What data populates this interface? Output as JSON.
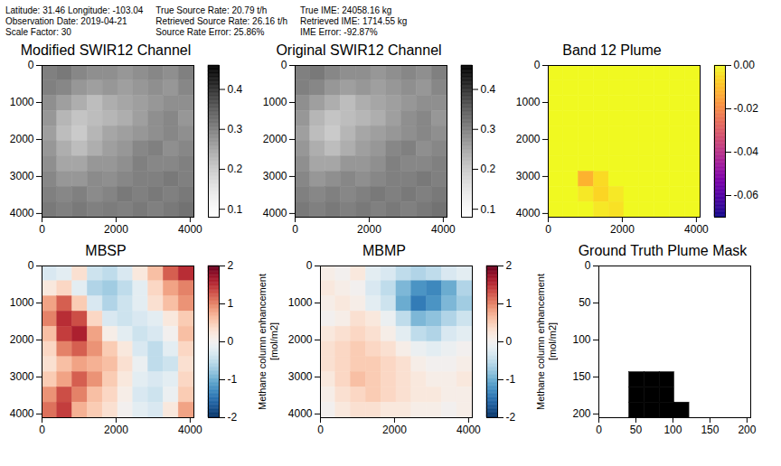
{
  "header": [
    [
      "Latitude: 31.46 Longitude: -103.04",
      "Observation Date: 2019-04-21",
      "Scale Factor: 30"
    ],
    [
      "True Source Rate: 20.79 t/h",
      "Retrieved Source Rate: 26.16 t/h",
      "Source Rate Error: 25.86%"
    ],
    [
      "True IME: 24058.16 kg",
      "Retrieved IME: 1714.55 kg",
      "IME Error: -92.87%"
    ]
  ],
  "chart_data": [
    {
      "type": "heatmap",
      "title": "Modified SWIR12 Channel",
      "xlim": [
        0,
        4100
      ],
      "ylim": [
        4100,
        0
      ],
      "xticks": [
        0,
        2000,
        4000
      ],
      "yticks": [
        0,
        1000,
        2000,
        3000,
        4000
      ],
      "color": "Greys",
      "color_range": [
        0.08,
        0.46
      ],
      "colorbar_ticks": [
        0.1,
        0.2,
        0.3,
        0.4
      ],
      "cells": [
        [
          0.3,
          0.31,
          0.29,
          0.28,
          0.28,
          0.27,
          0.28,
          0.29,
          0.28,
          0.3
        ],
        [
          0.3,
          0.29,
          0.27,
          0.26,
          0.27,
          0.26,
          0.27,
          0.28,
          0.27,
          0.29
        ],
        [
          0.28,
          0.26,
          0.24,
          0.22,
          0.24,
          0.25,
          0.26,
          0.27,
          0.28,
          0.28
        ],
        [
          0.27,
          0.23,
          0.21,
          0.22,
          0.23,
          0.24,
          0.26,
          0.28,
          0.29,
          0.27
        ],
        [
          0.26,
          0.22,
          0.2,
          0.23,
          0.25,
          0.26,
          0.27,
          0.28,
          0.29,
          0.28
        ],
        [
          0.27,
          0.24,
          0.22,
          0.24,
          0.26,
          0.27,
          0.29,
          0.3,
          0.28,
          0.29
        ],
        [
          0.28,
          0.25,
          0.25,
          0.27,
          0.27,
          0.28,
          0.3,
          0.29,
          0.29,
          0.3
        ],
        [
          0.29,
          0.27,
          0.27,
          0.285,
          0.28,
          0.29,
          0.3,
          0.3,
          0.31,
          0.3
        ],
        [
          0.3,
          0.29,
          0.3,
          0.285,
          0.295,
          0.31,
          0.3,
          0.31,
          0.3,
          0.31
        ],
        [
          0.31,
          0.3,
          0.31,
          0.3,
          0.305,
          0.3,
          0.31,
          0.3,
          0.31,
          0.32
        ]
      ]
    },
    {
      "type": "heatmap",
      "title": "Original SWIR12 Channel",
      "xlim": [
        0,
        4100
      ],
      "ylim": [
        4100,
        0
      ],
      "xticks": [
        0,
        2000,
        4000
      ],
      "yticks": [
        0,
        1000,
        2000,
        3000,
        4000
      ],
      "color": "Greys",
      "color_range": [
        0.08,
        0.46
      ],
      "colorbar_ticks": [
        0.1,
        0.2,
        0.3,
        0.4
      ],
      "cells": [
        [
          0.3,
          0.31,
          0.29,
          0.28,
          0.28,
          0.27,
          0.28,
          0.29,
          0.28,
          0.3
        ],
        [
          0.3,
          0.29,
          0.27,
          0.26,
          0.27,
          0.26,
          0.27,
          0.28,
          0.27,
          0.29
        ],
        [
          0.28,
          0.26,
          0.24,
          0.22,
          0.24,
          0.25,
          0.26,
          0.27,
          0.28,
          0.28
        ],
        [
          0.27,
          0.23,
          0.21,
          0.22,
          0.23,
          0.24,
          0.26,
          0.28,
          0.29,
          0.27
        ],
        [
          0.26,
          0.22,
          0.2,
          0.23,
          0.25,
          0.26,
          0.27,
          0.28,
          0.29,
          0.28
        ],
        [
          0.27,
          0.24,
          0.22,
          0.24,
          0.26,
          0.27,
          0.29,
          0.3,
          0.28,
          0.29
        ],
        [
          0.28,
          0.25,
          0.25,
          0.27,
          0.27,
          0.28,
          0.3,
          0.29,
          0.29,
          0.3
        ],
        [
          0.29,
          0.27,
          0.28,
          0.29,
          0.28,
          0.29,
          0.3,
          0.3,
          0.31,
          0.3
        ],
        [
          0.3,
          0.29,
          0.3,
          0.29,
          0.3,
          0.31,
          0.3,
          0.31,
          0.3,
          0.31
        ],
        [
          0.31,
          0.3,
          0.31,
          0.3,
          0.31,
          0.3,
          0.31,
          0.3,
          0.31,
          0.32
        ]
      ]
    },
    {
      "type": "heatmap",
      "title": "Band 12 Plume",
      "xlim": [
        0,
        4100
      ],
      "ylim": [
        4100,
        0
      ],
      "xticks": [
        0,
        2000,
        4000
      ],
      "yticks": [
        0,
        1000,
        2000,
        3000,
        4000
      ],
      "color": "plasma",
      "color_range": [
        -0.07,
        0
      ],
      "colorbar_ticks": [
        -0.06,
        -0.04,
        -0.02,
        {
          "value": 0,
          "label": "0.00"
        }
      ],
      "cells": [
        [
          0,
          0,
          0,
          0,
          0,
          0,
          0,
          0,
          0,
          0
        ],
        [
          0,
          0,
          0,
          0,
          0,
          0,
          0,
          0,
          0,
          0
        ],
        [
          0,
          0,
          0,
          0,
          0,
          0,
          0,
          0,
          0,
          0
        ],
        [
          0,
          0,
          0,
          0,
          0,
          0,
          0,
          0,
          0,
          0
        ],
        [
          0,
          0,
          0,
          0,
          0,
          0,
          0,
          0,
          0,
          0
        ],
        [
          0,
          0,
          0,
          0,
          0,
          0,
          0,
          0,
          0,
          0
        ],
        [
          0,
          0,
          0,
          0,
          0,
          0,
          0,
          0,
          0,
          0
        ],
        [
          0,
          0,
          -0.012,
          -0.005,
          0,
          0,
          0,
          0,
          0,
          0
        ],
        [
          0,
          0,
          -0.003,
          -0.006,
          -0.003,
          0,
          0,
          0,
          0,
          0
        ],
        [
          0,
          0,
          0,
          -0.003,
          -0.004,
          0,
          0,
          0,
          0,
          0
        ]
      ]
    },
    {
      "type": "heatmap",
      "title": "MBSP",
      "xlim": [
        0,
        4100
      ],
      "ylim": [
        4100,
        0
      ],
      "xticks": [
        0,
        2000,
        4000
      ],
      "yticks": [
        0,
        1000,
        2000,
        3000,
        4000
      ],
      "color": "RdBu_r",
      "color_range": [
        -2,
        2
      ],
      "colorbar_ticks": [
        -2,
        -1,
        0,
        1,
        2
      ],
      "colorbar_label": "Methane column enhancement [mol/m2]",
      "cells": [
        [
          -0.3,
          -0.2,
          0.3,
          -0.4,
          -0.5,
          -0.3,
          0.2,
          0.6,
          1.2,
          1.5
        ],
        [
          0.2,
          0.4,
          -0.2,
          -0.6,
          -0.7,
          -0.5,
          -0.2,
          0.4,
          0.8,
          1.0
        ],
        [
          0.8,
          1.2,
          0.5,
          -0.3,
          -0.6,
          -0.4,
          -0.2,
          0.3,
          0.6,
          0.9
        ],
        [
          1.0,
          1.5,
          1.3,
          0.4,
          -0.3,
          -0.4,
          -0.3,
          -0.2,
          0.2,
          0.5
        ],
        [
          0.6,
          1.4,
          1.6,
          0.8,
          0.1,
          -0.2,
          -0.4,
          -0.3,
          0.0,
          0.6
        ],
        [
          0.4,
          1.0,
          1.2,
          0.9,
          0.5,
          0.2,
          -0.3,
          -0.5,
          -0.2,
          0.4
        ],
        [
          0.3,
          0.6,
          0.8,
          0.7,
          0.6,
          0.3,
          -0.1,
          -0.5,
          -0.4,
          0.3
        ],
        [
          0.5,
          0.8,
          1.2,
          0.9,
          0.5,
          0.2,
          -0.2,
          -0.3,
          -0.2,
          0.4
        ],
        [
          0.9,
          1.3,
          1.0,
          0.6,
          0.4,
          0.1,
          -0.3,
          -0.4,
          -0.1,
          0.5
        ],
        [
          1.1,
          1.4,
          0.7,
          0.5,
          0.3,
          0.0,
          -0.2,
          -0.3,
          0.2,
          0.8
        ]
      ]
    },
    {
      "type": "heatmap",
      "title": "MBMP",
      "xlim": [
        0,
        4100
      ],
      "ylim": [
        4100,
        0
      ],
      "xticks": [
        0,
        2000,
        4000
      ],
      "yticks": [
        0,
        1000,
        2000,
        3000,
        4000
      ],
      "color": "RdBu_r",
      "color_range": [
        -2,
        2
      ],
      "colorbar_ticks": [
        -2,
        -1,
        0,
        1,
        2
      ],
      "colorbar_label": "Methane column enhancement [mol/m2]",
      "cells": [
        [
          0.1,
          0.0,
          0.2,
          -0.2,
          -0.3,
          -0.5,
          -0.6,
          -0.5,
          -0.3,
          -0.2
        ],
        [
          0.2,
          0.1,
          0.0,
          -0.3,
          -0.5,
          -0.9,
          -1.2,
          -1.3,
          -1.0,
          -0.6
        ],
        [
          0.1,
          0.2,
          0.1,
          -0.2,
          -0.4,
          -1.0,
          -1.4,
          -1.2,
          -0.9,
          -0.7
        ],
        [
          0.0,
          0.1,
          0.3,
          0.2,
          -0.1,
          -0.5,
          -0.9,
          -0.8,
          -0.6,
          -0.4
        ],
        [
          0.2,
          0.3,
          0.4,
          0.3,
          0.1,
          -0.2,
          -0.5,
          -0.6,
          -0.3,
          -0.2
        ],
        [
          0.3,
          0.4,
          0.5,
          0.4,
          0.3,
          0.1,
          -0.1,
          -0.2,
          -0.1,
          0.0
        ],
        [
          0.3,
          0.4,
          0.5,
          0.5,
          0.4,
          0.3,
          0.1,
          0.0,
          0.0,
          0.1
        ],
        [
          0.2,
          0.4,
          0.6,
          0.5,
          0.4,
          0.3,
          0.2,
          0.1,
          0.1,
          0.2
        ],
        [
          0.1,
          0.3,
          0.4,
          0.5,
          0.4,
          0.3,
          0.2,
          0.2,
          0.1,
          0.1
        ],
        [
          0.0,
          0.2,
          0.3,
          0.3,
          0.2,
          0.2,
          0.1,
          0.1,
          0.0,
          0.1
        ]
      ]
    },
    {
      "type": "heatmap",
      "title": "Ground Truth Plume Mask",
      "xlim": [
        0,
        205
      ],
      "ylim": [
        205,
        0
      ],
      "xticks": [
        0,
        50,
        100,
        150,
        200
      ],
      "yticks": [
        0,
        50,
        100,
        150,
        200
      ],
      "color": "Greys",
      "color_range": [
        0,
        1
      ],
      "cells": [
        [
          0,
          0,
          0,
          0,
          0,
          0,
          0,
          0,
          0,
          0
        ],
        [
          0,
          0,
          0,
          0,
          0,
          0,
          0,
          0,
          0,
          0
        ],
        [
          0,
          0,
          0,
          0,
          0,
          0,
          0,
          0,
          0,
          0
        ],
        [
          0,
          0,
          0,
          0,
          0,
          0,
          0,
          0,
          0,
          0
        ],
        [
          0,
          0,
          0,
          0,
          0,
          0,
          0,
          0,
          0,
          0
        ],
        [
          0,
          0,
          0,
          0,
          0,
          0,
          0,
          0,
          0,
          0
        ],
        [
          0,
          0,
          0,
          0,
          0,
          0,
          0,
          0,
          0,
          0
        ],
        [
          0,
          0,
          1,
          1,
          1,
          0,
          0,
          0,
          0,
          0
        ],
        [
          0,
          0,
          1,
          1,
          1,
          0,
          0,
          0,
          0,
          0
        ],
        [
          0,
          0,
          1,
          1,
          1,
          1,
          0,
          0,
          0,
          0
        ]
      ]
    }
  ]
}
